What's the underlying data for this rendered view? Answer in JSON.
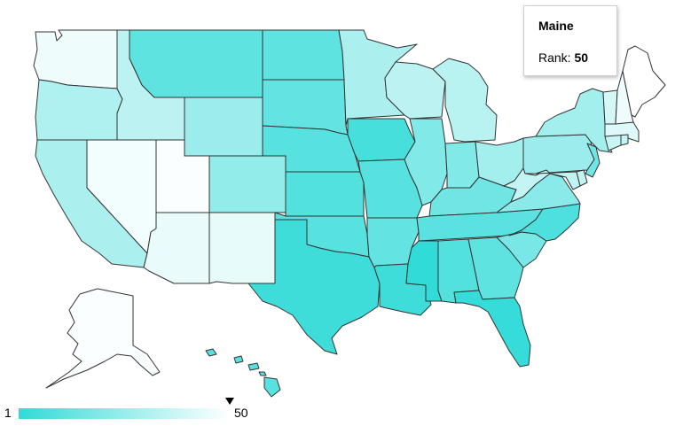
{
  "tooltip": {
    "state": "Maine",
    "rank_label": "Rank:",
    "rank_value": "50"
  },
  "legend": {
    "min_label": "1",
    "max_label": "50",
    "color_low_rank": "#31dbd8",
    "color_high_rank": "#ffffff",
    "selected_rank": 50,
    "rank_min": 1,
    "rank_max": 50
  },
  "ranks": {
    "WA": 46,
    "OR": 31,
    "CA": 30,
    "ID": 34,
    "NV": 47,
    "UT": 49,
    "AZ": 45,
    "MT": 12,
    "WY": 26,
    "CO": 24,
    "NM": 44,
    "ND": 12,
    "SD": 13,
    "NE": 10,
    "KS": 9,
    "OK": 10,
    "TX": 4,
    "MN": 30,
    "IA": 6,
    "MO": 10,
    "AR": 13,
    "LA": 4,
    "WI": 34,
    "IL": 20,
    "MI": 33,
    "IN": 20,
    "OH": 28,
    "KY": 16,
    "TN": 11,
    "MS": 1,
    "AL": 9,
    "GA": 12,
    "FL": 2,
    "SC": 18,
    "NC": 8,
    "VA": 22,
    "WV": 36,
    "MD": 35,
    "DE": 36,
    "PA": 26,
    "NY": 28,
    "NJ": 16,
    "CT": 37,
    "RI": 36,
    "MA": 42,
    "VT": 40,
    "NH": 46,
    "ME": 50,
    "AK": 49,
    "HI": 10
  }
}
